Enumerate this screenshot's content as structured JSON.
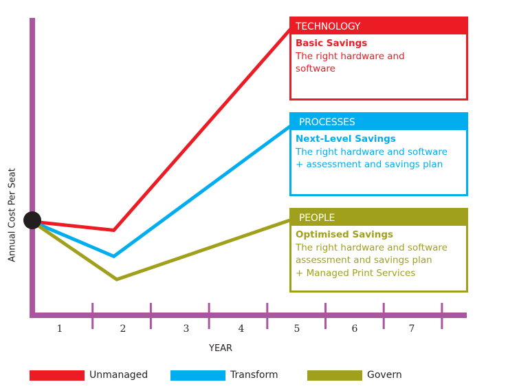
{
  "chart_data": {
    "type": "line",
    "title": "",
    "xlabel": "YEAR",
    "ylabel": "Annual Cost Per Seat",
    "x_ticks": [
      "1",
      "2",
      "3",
      "4",
      "5",
      "6",
      "7"
    ],
    "grid": false,
    "legend_position": "bottom",
    "axis_color": "#ab559f",
    "start_marker_color": "#231f20",
    "y_units": "relative (no scale shown)",
    "series": [
      {
        "name": "Unmanaged",
        "color": "#ec1c24",
        "points": [
          [
            0.0,
            0.32
          ],
          [
            1.4,
            0.29
          ],
          [
            4.5,
            1.0
          ]
        ]
      },
      {
        "name": "Transform",
        "color": "#00aeef",
        "points": [
          [
            0.0,
            0.32
          ],
          [
            1.4,
            0.2
          ],
          [
            4.5,
            0.66
          ]
        ]
      },
      {
        "name": "Govern",
        "color": "#a0a01c",
        "points": [
          [
            0.0,
            0.32
          ],
          [
            1.45,
            0.12
          ],
          [
            4.5,
            0.33
          ]
        ]
      }
    ],
    "annotations": [
      {
        "series": "Unmanaged",
        "header": "TECHNOLOGY",
        "subtitle": "Basic Savings",
        "lines": [
          "The right hardware and",
          "software"
        ]
      },
      {
        "series": "Transform",
        "header": "PROCESSES",
        "subtitle": "Next-Level Savings",
        "lines": [
          "The right hardware and software",
          "+ assessment and savings plan"
        ]
      },
      {
        "series": "Govern",
        "header": "PEOPLE",
        "subtitle": "Optimised Savings",
        "lines": [
          "The right hardware and software",
          "assessment and savings plan",
          "+ Managed Print Services"
        ]
      }
    ]
  }
}
